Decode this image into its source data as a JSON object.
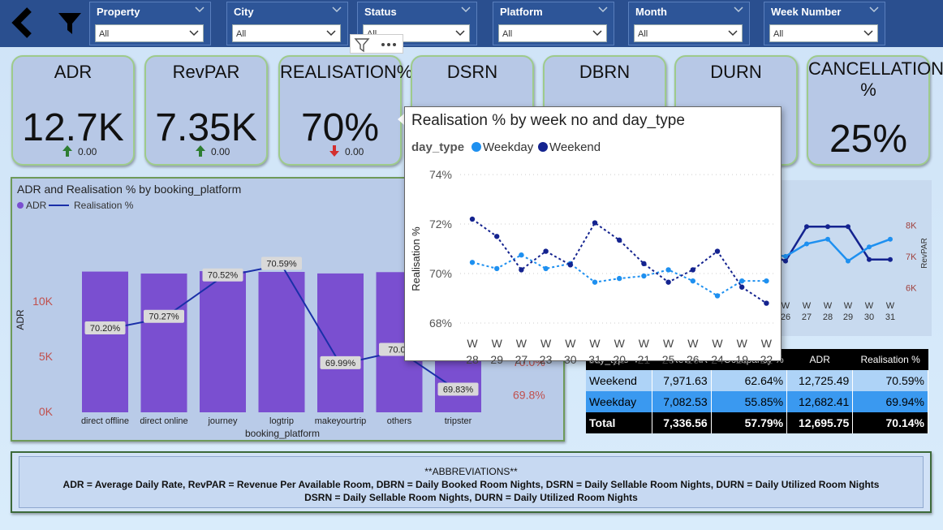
{
  "slicers": [
    {
      "label": "Property",
      "value": "All"
    },
    {
      "label": "City",
      "value": "All"
    },
    {
      "label": "Status",
      "value": "All"
    },
    {
      "label": "Platform",
      "value": "All"
    },
    {
      "label": "Month",
      "value": "All"
    },
    {
      "label": "Week Number",
      "value": "All"
    }
  ],
  "kpis": [
    {
      "title": "ADR",
      "value": "12.7K",
      "delta": "0.00",
      "trend": "up"
    },
    {
      "title": "RevPAR",
      "value": "7.35K",
      "delta": "0.00",
      "trend": "up"
    },
    {
      "title": "REALISATION%",
      "value": "70%",
      "delta": "0.00",
      "trend": "down"
    },
    {
      "title": "DSRN",
      "value": "",
      "delta": "",
      "trend": ""
    },
    {
      "title": "DBRN",
      "value": "",
      "delta": "",
      "trend": ""
    },
    {
      "title": "DURN",
      "value": "",
      "delta": "",
      "trend": ""
    },
    {
      "title": "CANCELLATION %",
      "value": "25%",
      "delta": "",
      "trend": ""
    }
  ],
  "colors": {
    "bar": "#7a4fd0",
    "line": "#1a2fa8",
    "weekday": "#1e90f0",
    "weekend": "#14238f",
    "topbar": "#2a4f8f"
  },
  "chart_data": [
    {
      "type": "bar",
      "title": "ADR and Realisation % by booking_platform",
      "legend": [
        "ADR",
        "Realisation %"
      ],
      "xlabel": "booking_platform",
      "ylabel": "ADR",
      "categories": [
        "direct offline",
        "direct online",
        "journey",
        "logtrip",
        "makeyourtrip",
        "others",
        "tripster"
      ],
      "adr_values": [
        12750,
        12570,
        12790,
        12720,
        12580,
        12700,
        12630
      ],
      "realisation_values": [
        70.2,
        70.27,
        70.52,
        70.59,
        69.99,
        70.07,
        69.83
      ],
      "realisation_labels": [
        "70.20%",
        "70.27%",
        "70.52%",
        "70.59%",
        "69.99%",
        "70.07",
        "69.83%"
      ],
      "left_ticks": [
        "0K",
        "5K",
        "10K"
      ],
      "right_ticks": [
        "69.8%",
        "70.0%"
      ],
      "ylim": [
        0,
        15000
      ],
      "y2lim": [
        69.7,
        70.7
      ]
    },
    {
      "type": "line",
      "title": "Realisation % by week no and day_type",
      "legend_title": "day_type",
      "xlabel": "week no",
      "ylabel": "Realisation %",
      "categories": [
        "W 28",
        "W 29",
        "W 27",
        "W 23",
        "W 30",
        "W 31",
        "W 20",
        "W 21",
        "W 25",
        "W 26",
        "W 24",
        "W 19",
        "W 22"
      ],
      "series": [
        {
          "name": "Weekday",
          "values": [
            70.45,
            70.2,
            70.75,
            70.2,
            70.4,
            69.65,
            69.8,
            69.9,
            70.15,
            69.7,
            69.1,
            69.7,
            69.7
          ]
        },
        {
          "name": "Weekend",
          "values": [
            72.2,
            71.5,
            70.15,
            70.9,
            70.35,
            72.05,
            71.35,
            70.4,
            69.65,
            70.15,
            70.9,
            69.45,
            68.8
          ]
        }
      ],
      "y_ticks": [
        "68%",
        "70%",
        "72%",
        "74%"
      ],
      "ylim": [
        67.9,
        74.2
      ]
    },
    {
      "type": "line",
      "title": "",
      "ylabel_right": "RevPAR",
      "categories": [
        "26",
        "27",
        "28",
        "29",
        "30",
        "31"
      ],
      "series": [
        {
          "name": "",
          "values": [
            6.85,
            7.95,
            7.95,
            7.95,
            6.9,
            6.9
          ]
        },
        {
          "name": "",
          "values": [
            7.0,
            7.4,
            7.55,
            6.85,
            7.3,
            7.55
          ]
        }
      ],
      "y_ticks": [
        "6K",
        "7K",
        "8K"
      ],
      "ylim": [
        5.8,
        8.4
      ]
    }
  ],
  "table": {
    "headers": [
      "day_type",
      "RevPAR",
      "Occupancy %",
      "ADR",
      "Realisation %"
    ],
    "rows": [
      {
        "day": "Weekend",
        "revpar": "7,971.63",
        "occ": "62.64%",
        "adr": "12,725.49",
        "real": "70.59%"
      },
      {
        "day": "Weekday",
        "revpar": "7,082.53",
        "occ": "55.85%",
        "adr": "12,682.41",
        "real": "69.94%"
      }
    ],
    "total": {
      "day": "Total",
      "revpar": "7,336.56",
      "occ": "57.79%",
      "adr": "12,695.75",
      "real": "70.14%"
    }
  },
  "abbreviations": {
    "heading": "**ABBREVIATIONS**",
    "line1": "ADR = Average Daily Rate, RevPAR = Revenue Per Available Room,   DBRN = Daily Booked Room Nights,   DSRN = Daily Sellable Room Nights,   DURN = Daily Utilized Room Nights",
    "line2": "DSRN = Daily Sellable Room Nights,   DURN = Daily Utilized Room Nights"
  }
}
